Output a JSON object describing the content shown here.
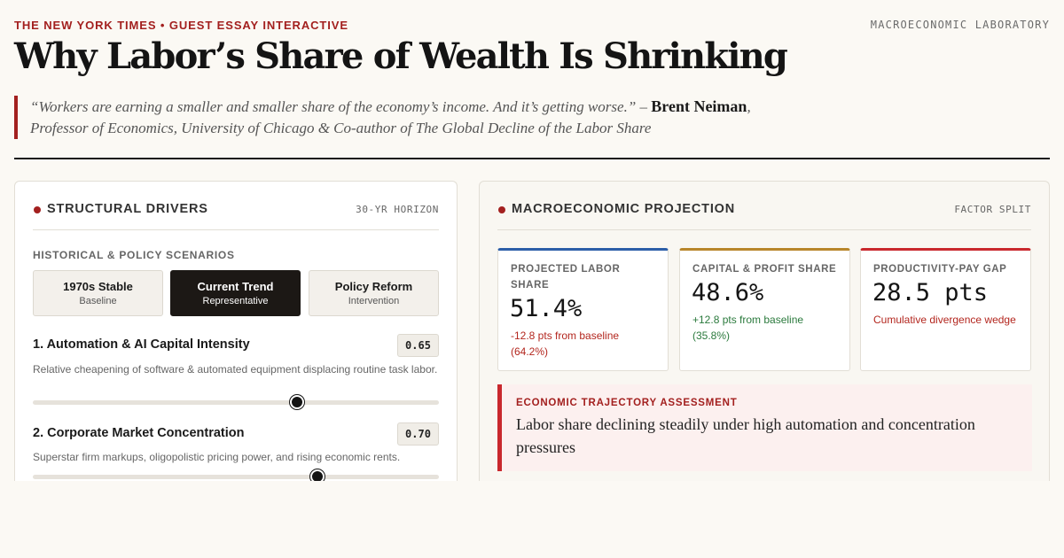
{
  "header": {
    "kicker": "THE NEW YORK TIMES • GUEST ESSAY INTERACTIVE",
    "lab": "MACROECONOMIC LABORATORY",
    "headline": "Why Labor’s Share of Wealth Is Shrinking"
  },
  "quote": {
    "text": "“Workers are earning a smaller and smaller share of the economy’s income. And it’s getting worse.” –",
    "name": "Brent Neiman",
    "affiliation": ", Professor of Economics, University of Chicago & Co-author of The Global Decline of the Labor Share"
  },
  "drivers": {
    "title": "STRUCTURAL DRIVERS",
    "tag": "30-YR HORIZON",
    "section_label": "HISTORICAL & POLICY SCENARIOS",
    "scenarios": [
      {
        "title": "1970s Stable",
        "sub": "Baseline",
        "active": false
      },
      {
        "title": "Current Trend",
        "sub": "Representative",
        "active": true
      },
      {
        "title": "Policy Reform",
        "sub": "Intervention",
        "active": false
      }
    ],
    "sliders": [
      {
        "label": "1. Automation & AI Capital Intensity",
        "value": "0.65",
        "desc": "Relative cheapening of software & automated equipment displacing routine task labor.",
        "level": 0.65
      },
      {
        "label": "2. Corporate Market Concentration",
        "value": "0.70",
        "desc": "Superstar firm markups, oligopolistic pricing power, and rising economic rents.",
        "level": 0.7
      }
    ]
  },
  "projection": {
    "title": "MACROECONOMIC PROJECTION",
    "tag": "FACTOR SPLIT",
    "metrics": [
      {
        "label": "PROJECTED LABOR SHARE",
        "value": "51.4%",
        "sub": "-12.8 pts from baseline (64.2%)",
        "accent": "#2c5ea8",
        "sub_color": "#b3261e"
      },
      {
        "label": "CAPITAL & PROFIT SHARE",
        "value": "48.6%",
        "sub": "+12.8 pts from baseline (35.8%)",
        "accent": "#b8862b",
        "sub_color": "#2b7a3d"
      },
      {
        "label": "PRODUCTIVITY-PAY GAP",
        "value": "28.5 pts",
        "sub": "Cumulative divergence wedge",
        "accent": "#c9282d",
        "sub_color": "#b3261e"
      }
    ],
    "assessment": {
      "label": "ECONOMIC TRAJECTORY ASSESSMENT",
      "text": "Labor share declining steadily under high automation and concentration pressures"
    }
  }
}
